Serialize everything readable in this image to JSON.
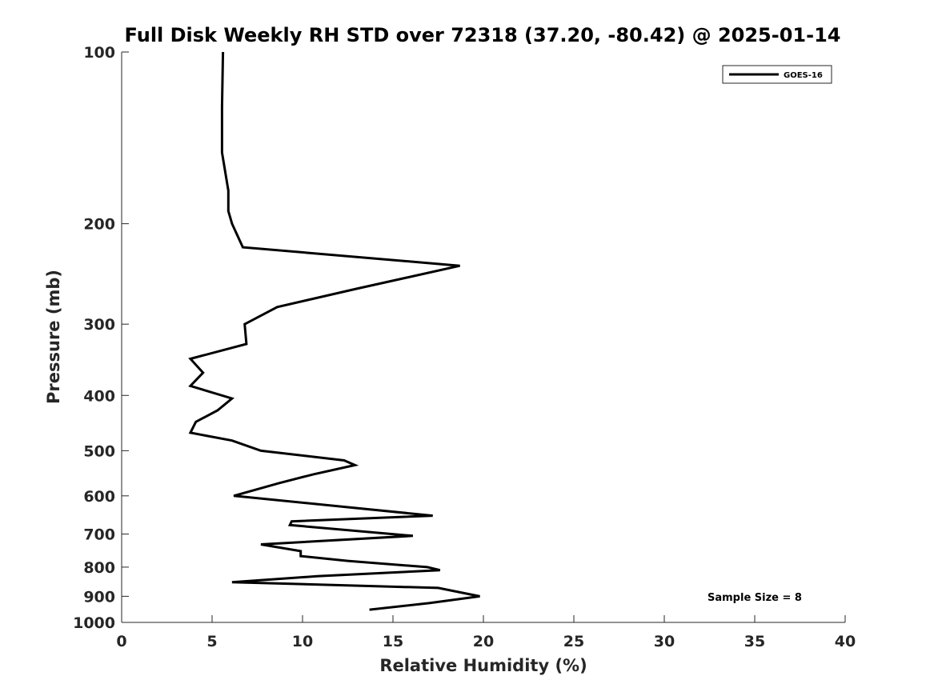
{
  "chart_data": {
    "type": "line",
    "title": "Full Disk Weekly RH STD over 72318 (37.20, -80.42) @ 2025-01-14",
    "xlabel": "Relative Humidity (%)",
    "ylabel": "Pressure (mb)",
    "xlim": [
      0,
      40
    ],
    "ylim": [
      100,
      1000
    ],
    "y_scale": "log",
    "y_reversed": true,
    "grid": false,
    "legend_position": "top-right",
    "x_ticks": [
      "0",
      "5",
      "10",
      "15",
      "20",
      "25",
      "30",
      "35",
      "40"
    ],
    "y_ticks": [
      "100",
      "200",
      "300",
      "400",
      "500",
      "600",
      "700",
      "800",
      "900",
      "1000"
    ],
    "series": [
      {
        "name": "GOES-16",
        "color": "#000000",
        "points": [
          [
            5.6,
            100
          ],
          [
            5.55,
            125
          ],
          [
            5.55,
            150
          ],
          [
            5.9,
            175
          ],
          [
            5.9,
            190
          ],
          [
            6.1,
            200
          ],
          [
            6.7,
            220
          ],
          [
            18.7,
            237
          ],
          [
            13.0,
            260
          ],
          [
            8.6,
            280
          ],
          [
            6.8,
            300
          ],
          [
            6.9,
            325
          ],
          [
            3.8,
            345
          ],
          [
            4.5,
            365
          ],
          [
            3.8,
            385
          ],
          [
            6.1,
            405
          ],
          [
            5.3,
            425
          ],
          [
            4.1,
            445
          ],
          [
            3.8,
            465
          ],
          [
            6.1,
            480
          ],
          [
            7.7,
            500
          ],
          [
            12.3,
            520
          ],
          [
            12.9,
            530
          ],
          [
            10.6,
            550
          ],
          [
            8.7,
            570
          ],
          [
            6.2,
            600
          ],
          [
            17.2,
            650
          ],
          [
            9.4,
            665
          ],
          [
            9.3,
            675
          ],
          [
            16.1,
            705
          ],
          [
            7.7,
            730
          ],
          [
            9.9,
            750
          ],
          [
            9.9,
            765
          ],
          [
            12.5,
            780
          ],
          [
            16.9,
            800
          ],
          [
            17.6,
            810
          ],
          [
            10.8,
            830
          ],
          [
            6.1,
            850
          ],
          [
            17.5,
            870
          ],
          [
            19.8,
            900
          ],
          [
            17.0,
            925
          ],
          [
            13.7,
            950
          ]
        ]
      }
    ],
    "annotations": [
      {
        "text": "Sample Size = 8"
      }
    ]
  }
}
